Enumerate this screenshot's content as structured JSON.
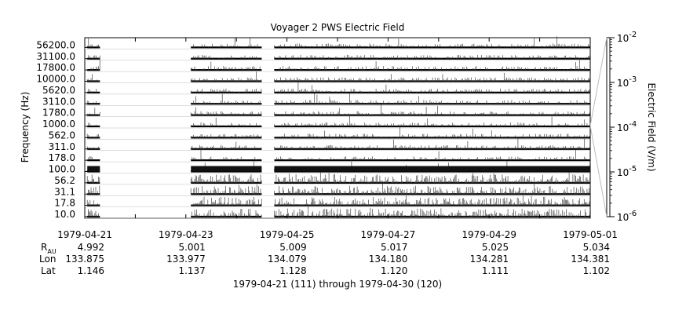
{
  "chart_data": {
    "type": "line",
    "title": "Voyager 2 PWS Electric Field",
    "ylabel": "Frequency (Hz)",
    "colorbar_label": "Electric Field (V/m)",
    "channels": [
      "56200.0",
      "31100.0",
      "17800.0",
      "10000.0",
      "5620.0",
      "3110.0",
      "1780.0",
      "1000.0",
      "562.0",
      "311.0",
      "178.0",
      "100.0",
      "56.2",
      "31.1",
      "17.8",
      "10.0"
    ],
    "colorbar_ticks": [
      {
        "base": "10",
        "exp": "-2",
        "log": -2
      },
      {
        "base": "10",
        "exp": "-3",
        "log": -3
      },
      {
        "base": "10",
        "exp": "-4",
        "log": -4
      },
      {
        "base": "10",
        "exp": "-5",
        "log": -5
      },
      {
        "base": "10",
        "exp": "-6",
        "log": -6
      }
    ],
    "colorbar_range": [
      -6,
      -2
    ],
    "x_dates": [
      "1979-04-21",
      "1979-04-23",
      "1979-04-25",
      "1979-04-27",
      "1979-04-29",
      "1979-05-01"
    ],
    "xlim_days": [
      0,
      10
    ],
    "data_coverage_days": [
      [
        0.05,
        0.3
      ],
      [
        2.1,
        3.5
      ],
      [
        3.75,
        10.0
      ]
    ],
    "ephemeris": {
      "rau_label": "R",
      "rau_sub": "AU",
      "rau": [
        "4.992",
        "5.001",
        "5.009",
        "5.017",
        "5.025",
        "5.034"
      ],
      "lon_label": "Lon",
      "lon": [
        "133.875",
        "133.977",
        "134.079",
        "134.180",
        "134.281",
        "134.381"
      ],
      "lat_label": "Lat",
      "lat": [
        "1.146",
        "1.137",
        "1.128",
        "1.120",
        "1.111",
        "1.102"
      ]
    },
    "footer": "1979-04-21 (111) through 1979-04-30 (120)"
  }
}
